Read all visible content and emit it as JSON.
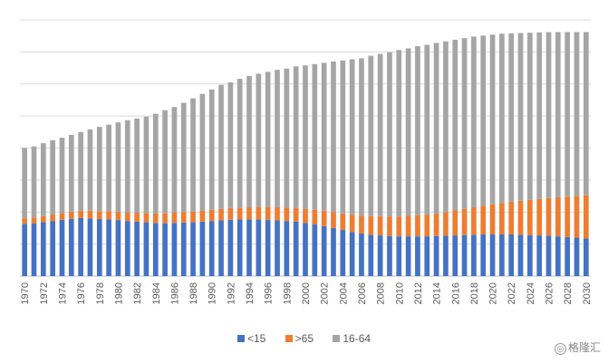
{
  "chart_data": {
    "type": "bar",
    "stacked": true,
    "title": "",
    "xlabel": "",
    "ylabel": "",
    "ylim": [
      0,
      8
    ],
    "grid": true,
    "legend_position": "bottom",
    "x": [
      1970,
      1971,
      1972,
      1973,
      1974,
      1975,
      1976,
      1977,
      1978,
      1979,
      1980,
      1981,
      1982,
      1983,
      1984,
      1985,
      1986,
      1987,
      1988,
      1989,
      1990,
      1991,
      1992,
      1993,
      1994,
      1995,
      1996,
      1997,
      1998,
      1999,
      2000,
      2001,
      2002,
      2003,
      2004,
      2005,
      2006,
      2007,
      2008,
      2009,
      2010,
      2011,
      2012,
      2013,
      2014,
      2015,
      2016,
      2017,
      2018,
      2019,
      2020,
      2021,
      2022,
      2023,
      2024,
      2025,
      2026,
      2027,
      2028,
      2029,
      2030
    ],
    "tick_labels": [
      "1970",
      "1972",
      "1974",
      "1976",
      "1978",
      "1980",
      "1982",
      "1984",
      "1986",
      "1988",
      "1990",
      "1992",
      "1994",
      "1996",
      "1998",
      "2000",
      "2002",
      "2004",
      "2006",
      "2008",
      "2010",
      "2012",
      "2014",
      "2016",
      "2018",
      "2020",
      "2022",
      "2024",
      "2026",
      "2028",
      "2030"
    ],
    "series": [
      {
        "name": "<15",
        "color": "#4472C4",
        "values": [
          1.63,
          1.65,
          1.68,
          1.72,
          1.76,
          1.79,
          1.81,
          1.8,
          1.78,
          1.77,
          1.75,
          1.72,
          1.7,
          1.68,
          1.66,
          1.65,
          1.66,
          1.67,
          1.68,
          1.7,
          1.72,
          1.74,
          1.76,
          1.77,
          1.77,
          1.77,
          1.76,
          1.74,
          1.72,
          1.7,
          1.66,
          1.61,
          1.56,
          1.5,
          1.44,
          1.38,
          1.33,
          1.29,
          1.27,
          1.25,
          1.24,
          1.24,
          1.24,
          1.24,
          1.25,
          1.26,
          1.27,
          1.28,
          1.29,
          1.3,
          1.3,
          1.3,
          1.3,
          1.29,
          1.28,
          1.27,
          1.26,
          1.24,
          1.22,
          1.2,
          1.18
        ]
      },
      {
        "name": ">65",
        "color": "#ED7D31",
        "values": [
          0.17,
          0.18,
          0.19,
          0.2,
          0.21,
          0.22,
          0.23,
          0.24,
          0.25,
          0.26,
          0.26,
          0.27,
          0.28,
          0.29,
          0.3,
          0.31,
          0.32,
          0.33,
          0.33,
          0.34,
          0.35,
          0.36,
          0.37,
          0.37,
          0.38,
          0.39,
          0.4,
          0.41,
          0.42,
          0.43,
          0.44,
          0.46,
          0.48,
          0.5,
          0.52,
          0.54,
          0.56,
          0.58,
          0.6,
          0.61,
          0.62,
          0.64,
          0.66,
          0.68,
          0.7,
          0.74,
          0.78,
          0.82,
          0.86,
          0.9,
          0.94,
          0.98,
          1.02,
          1.06,
          1.1,
          1.14,
          1.18,
          1.22,
          1.26,
          1.3,
          1.34
        ]
      },
      {
        "name": "16-64",
        "color": "#A5A5A5",
        "values": [
          2.2,
          2.22,
          2.28,
          2.32,
          2.35,
          2.4,
          2.46,
          2.54,
          2.63,
          2.7,
          2.79,
          2.88,
          2.94,
          3.01,
          3.11,
          3.22,
          3.3,
          3.41,
          3.54,
          3.65,
          3.76,
          3.87,
          3.92,
          4.02,
          4.1,
          4.16,
          4.22,
          4.29,
          4.34,
          4.42,
          4.48,
          4.55,
          4.62,
          4.7,
          4.77,
          4.85,
          4.91,
          5.01,
          5.07,
          5.13,
          5.2,
          5.23,
          5.28,
          5.3,
          5.33,
          5.33,
          5.33,
          5.33,
          5.33,
          5.31,
          5.3,
          5.29,
          5.26,
          5.24,
          5.22,
          5.2,
          5.18,
          5.16,
          5.14,
          5.12,
          5.1
        ]
      }
    ]
  },
  "watermark": {
    "icon_text": "◎",
    "text": "格隆汇"
  }
}
